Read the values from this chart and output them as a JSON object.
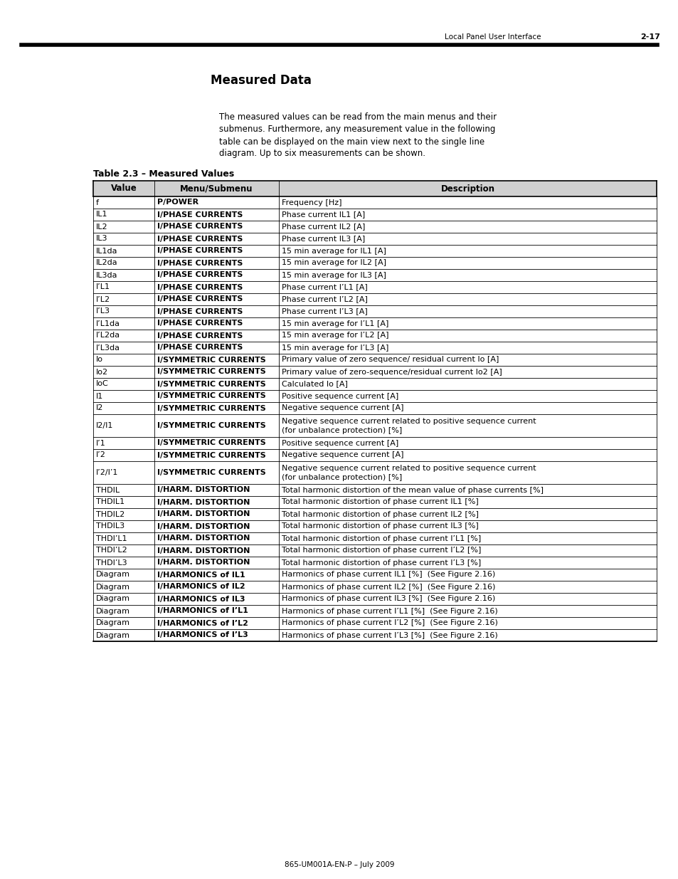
{
  "page_header_left": "Local Panel User Interface",
  "page_header_right": "2-17",
  "section_title": "Measured Data",
  "intro_text": "The measured values can be read from the main menus and their\nsubmenus. Furthermore, any measurement value in the following\ntable can be displayed on the main view next to the single line\ndiagram. Up to six measurements can be shown.",
  "table_title": "Table 2.3 – Measured Values",
  "col_headers": [
    "Value",
    "Menu/Submenu",
    "Description"
  ],
  "header_bg": "#d0d0d0",
  "rows": [
    [
      "f",
      "P/POWER",
      "Frequency [Hz]"
    ],
    [
      "IL1",
      "I/PHASE CURRENTS",
      "Phase current IL1 [A]"
    ],
    [
      "IL2",
      "I/PHASE CURRENTS",
      "Phase current IL2 [A]"
    ],
    [
      "IL3",
      "I/PHASE CURRENTS",
      "Phase current IL3 [A]"
    ],
    [
      "IL1da",
      "I/PHASE CURRENTS",
      "15 min average for IL1 [A]"
    ],
    [
      "IL2da",
      "I/PHASE CURRENTS",
      "15 min average for IL2 [A]"
    ],
    [
      "IL3da",
      "I/PHASE CURRENTS",
      "15 min average for IL3 [A]"
    ],
    [
      "I’L1",
      "I/PHASE CURRENTS",
      "Phase current I’L1 [A]"
    ],
    [
      "I’L2",
      "I/PHASE CURRENTS",
      "Phase current I’L2 [A]"
    ],
    [
      "I’L3",
      "I/PHASE CURRENTS",
      "Phase current I’L3 [A]"
    ],
    [
      "I’L1da",
      "I/PHASE CURRENTS",
      "15 min average for I’L1 [A]"
    ],
    [
      "I’L2da",
      "I/PHASE CURRENTS",
      "15 min average for I’L2 [A]"
    ],
    [
      "I’L3da",
      "I/PHASE CURRENTS",
      "15 min average for I’L3 [A]"
    ],
    [
      "Io",
      "I/SYMMETRIC CURRENTS",
      "Primary value of zero sequence/ residual current Io [A]"
    ],
    [
      "Io2",
      "I/SYMMETRIC CURRENTS",
      "Primary value of zero-sequence/residual current Io2 [A]"
    ],
    [
      "IoC",
      "I/SYMMETRIC CURRENTS",
      "Calculated Io [A]"
    ],
    [
      "I1",
      "I/SYMMETRIC CURRENTS",
      "Positive sequence current [A]"
    ],
    [
      "I2",
      "I/SYMMETRIC CURRENTS",
      "Negative sequence current [A]"
    ],
    [
      "I2/I1",
      "I/SYMMETRIC CURRENTS",
      "Negative sequence current related to positive sequence current\n(for unbalance protection) [%]"
    ],
    [
      "I’1",
      "I/SYMMETRIC CURRENTS",
      "Positive sequence current [A]"
    ],
    [
      "I’2",
      "I/SYMMETRIC CURRENTS",
      "Negative sequence current [A]"
    ],
    [
      "I’2/I’1",
      "I/SYMMETRIC CURRENTS",
      "Negative sequence current related to positive sequence current\n(for unbalance protection) [%]"
    ],
    [
      "THDIL",
      "I/HARM. DISTORTION",
      "Total harmonic distortion of the mean value of phase currents [%]"
    ],
    [
      "THDIL1",
      "I/HARM. DISTORTION",
      "Total harmonic distortion of phase current IL1 [%]"
    ],
    [
      "THDIL2",
      "I/HARM. DISTORTION",
      "Total harmonic distortion of phase current IL2 [%]"
    ],
    [
      "THDIL3",
      "I/HARM. DISTORTION",
      "Total harmonic distortion of phase current IL3 [%]"
    ],
    [
      "THDI’L1",
      "I/HARM. DISTORTION",
      "Total harmonic distortion of phase current I’L1 [%]"
    ],
    [
      "THDI’L2",
      "I/HARM. DISTORTION",
      "Total harmonic distortion of phase current I’L2 [%]"
    ],
    [
      "THDI’L3",
      "I/HARM. DISTORTION",
      "Total harmonic distortion of phase current I’L3 [%]"
    ],
    [
      "Diagram",
      "I/HARMONICS of IL1",
      "Harmonics of phase current IL1 [%]  (See Figure 2.16)"
    ],
    [
      "Diagram",
      "I/HARMONICS of IL2",
      "Harmonics of phase current IL2 [%]  (See Figure 2.16)"
    ],
    [
      "Diagram",
      "I/HARMONICS of IL3",
      "Harmonics of phase current IL3 [%]  (See Figure 2.16)"
    ],
    [
      "Diagram",
      "I/HARMONICS of I’L1",
      "Harmonics of phase current I’L1 [%]  (See Figure 2.16)"
    ],
    [
      "Diagram",
      "I/HARMONICS of I’L2",
      "Harmonics of phase current I’L2 [%]  (See Figure 2.16)"
    ],
    [
      "Diagram",
      "I/HARMONICS of I’L3",
      "Harmonics of phase current I’L3 [%]  (See Figure 2.16)"
    ]
  ],
  "footer_text": "865-UM001A-EN-P – July 2009",
  "bg_color": "#ffffff",
  "text_color": "#000000"
}
